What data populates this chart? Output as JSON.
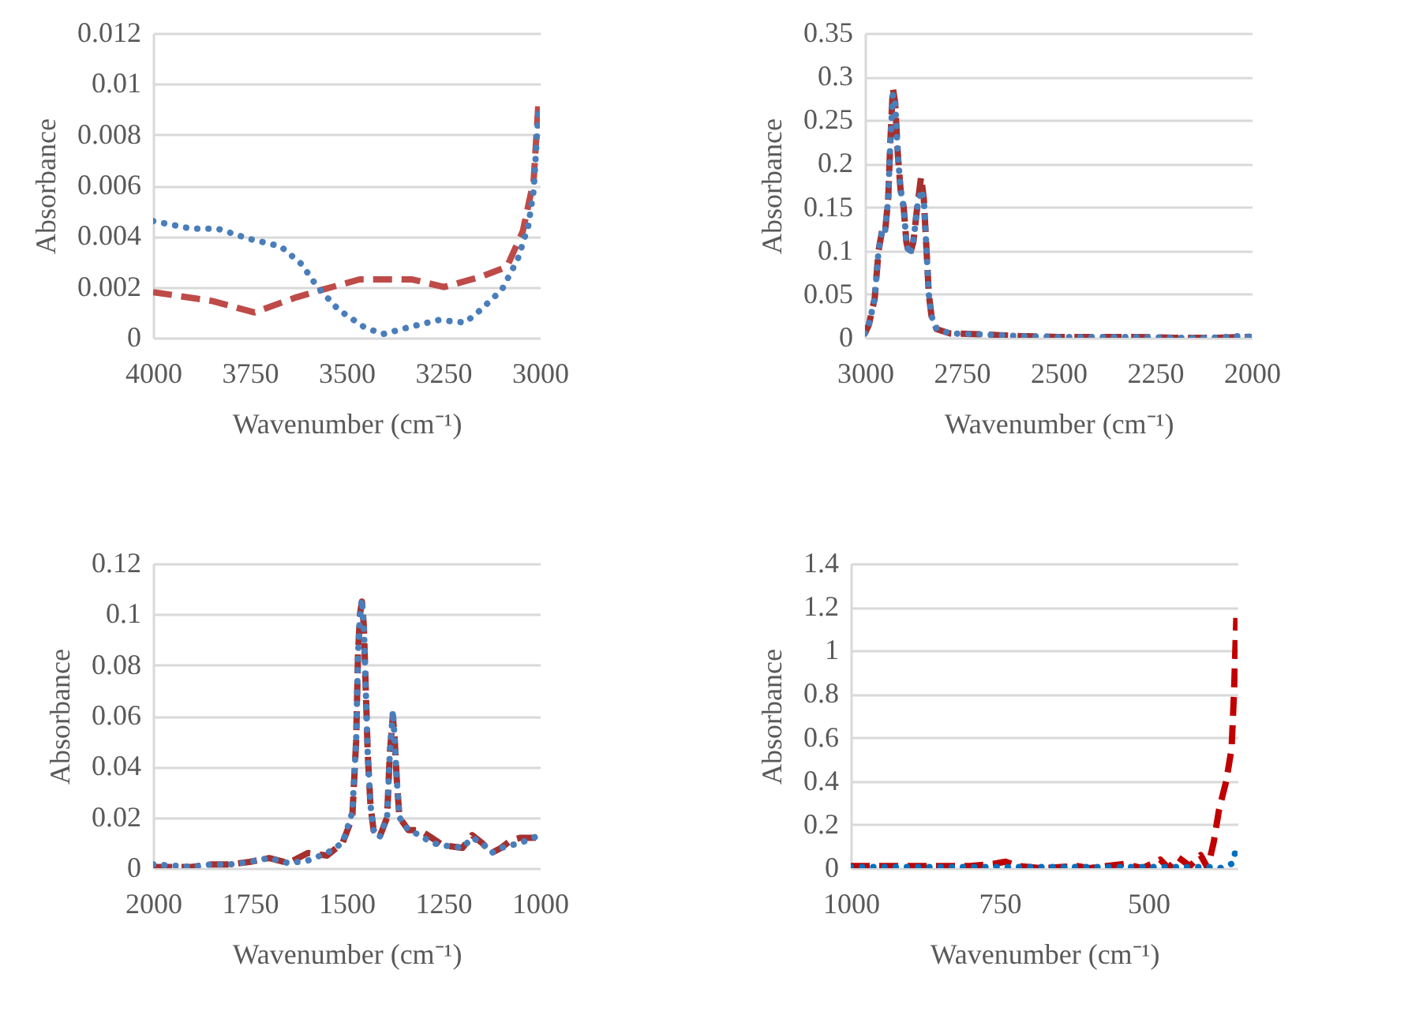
{
  "chart_data": [
    {
      "type": "line",
      "xlabel": "Wavenumber (cm⁻¹)",
      "ylabel": "Absorbance",
      "xlim": [
        4000,
        3000
      ],
      "xticks": [
        4000,
        3750,
        3500,
        3250,
        3000
      ],
      "ylim": [
        0,
        0.012
      ],
      "yticks": [
        0,
        0.002,
        0.004,
        0.006,
        0.008,
        0.01,
        0.012
      ],
      "grid": "y",
      "marker": "none",
      "series": [
        {
          "color": "#be4b48",
          "line_style": "dashed",
          "x": [
            4000,
            3847,
            3738,
            3629,
            3561,
            3466,
            3330,
            3248,
            3153,
            3085,
            3044,
            3016,
            3003
          ],
          "values": [
            0.0018,
            0.00145,
            0.001,
            0.0016,
            0.0019,
            0.0023,
            0.0023,
            0.002,
            0.0024,
            0.0028,
            0.0042,
            0.0062,
            0.0094
          ]
        },
        {
          "color": "#4a7ebb",
          "line_style": "dotted",
          "x": [
            4000,
            3902,
            3834,
            3752,
            3670,
            3616,
            3575,
            3520,
            3452,
            3405,
            3330,
            3262,
            3193,
            3153,
            3098,
            3057,
            3030,
            3016,
            3003
          ],
          "values": [
            0.0046,
            0.0043,
            0.0043,
            0.0039,
            0.0036,
            0.0029,
            0.002,
            0.0011,
            0.0004,
            0.00015,
            0.00045,
            0.0007,
            0.0006,
            0.0011,
            0.0019,
            0.0031,
            0.0044,
            0.0058,
            0.0091
          ]
        }
      ]
    },
    {
      "type": "line",
      "xlabel": "Wavenumber (cm⁻¹)",
      "ylabel": "Absorbance",
      "xlim": [
        3000,
        2000
      ],
      "xticks": [
        3000,
        2750,
        2500,
        2250,
        2000
      ],
      "ylim": [
        0,
        0.35
      ],
      "yticks": [
        0,
        0.05,
        0.1,
        0.15,
        0.2,
        0.25,
        0.3,
        0.35
      ],
      "grid": "y",
      "marker": "none",
      "series": [
        {
          "color": "#a5302e",
          "line_style": "dashed",
          "x": [
            3000,
            2990,
            2975,
            2965,
            2955,
            2948,
            2940,
            2935,
            2928,
            2922,
            2915,
            2908,
            2900,
            2893,
            2885,
            2875,
            2865,
            2855,
            2848,
            2842,
            2835,
            2828,
            2815,
            2780,
            2700,
            2600,
            2500,
            2400,
            2300,
            2200,
            2100,
            2000
          ],
          "values": [
            0.005,
            0.015,
            0.045,
            0.1,
            0.125,
            0.122,
            0.16,
            0.22,
            0.287,
            0.27,
            0.21,
            0.17,
            0.15,
            0.11,
            0.094,
            0.11,
            0.15,
            0.185,
            0.16,
            0.11,
            0.05,
            0.025,
            0.01,
            0.005,
            0.004,
            0.002,
            0.001,
            0.001,
            0.001,
            0.0,
            0.0,
            0.001
          ]
        },
        {
          "color": "#4a7ebb",
          "line_style": "dotted",
          "x": [
            3000,
            2990,
            2975,
            2965,
            2955,
            2948,
            2940,
            2935,
            2928,
            2922,
            2915,
            2908,
            2900,
            2893,
            2885,
            2875,
            2865,
            2855,
            2848,
            2842,
            2835,
            2828,
            2815,
            2780,
            2700,
            2600,
            2500,
            2400,
            2300,
            2200,
            2100,
            2030,
            2000
          ],
          "values": [
            0.005,
            0.015,
            0.045,
            0.1,
            0.125,
            0.122,
            0.16,
            0.22,
            0.28,
            0.27,
            0.21,
            0.17,
            0.15,
            0.11,
            0.095,
            0.11,
            0.15,
            0.17,
            0.16,
            0.11,
            0.05,
            0.025,
            0.01,
            0.005,
            0.004,
            0.002,
            0.001,
            0.001,
            0.001,
            0.0,
            0.0,
            0.002,
            0.001
          ]
        }
      ]
    },
    {
      "type": "line",
      "xlabel": "Wavenumber (cm⁻¹)",
      "ylabel": "Absorbance",
      "xlim": [
        2000,
        1000
      ],
      "xticks": [
        2000,
        1750,
        1500,
        1250,
        1000
      ],
      "ylim": [
        0,
        0.12
      ],
      "yticks": [
        0,
        0.02,
        0.04,
        0.06,
        0.08,
        0.1,
        0.12
      ],
      "grid": "y",
      "marker": "none",
      "series": [
        {
          "color": "#a5302e",
          "line_style": "dashed",
          "x": [
            2000,
            1950,
            1900,
            1850,
            1800,
            1750,
            1700,
            1650,
            1600,
            1550,
            1510,
            1485,
            1475,
            1470,
            1465,
            1460,
            1455,
            1450,
            1445,
            1438,
            1430,
            1415,
            1395,
            1388,
            1380,
            1375,
            1370,
            1363,
            1340,
            1310,
            1280,
            1250,
            1200,
            1175,
            1150,
            1125,
            1100,
            1075,
            1050,
            1000
          ],
          "values": [
            0.0005,
            0.0005,
            0.0005,
            0.0015,
            0.0015,
            0.0025,
            0.004,
            0.002,
            0.006,
            0.005,
            0.01,
            0.02,
            0.05,
            0.085,
            0.1,
            0.105,
            0.095,
            0.07,
            0.045,
            0.025,
            0.015,
            0.012,
            0.02,
            0.045,
            0.06,
            0.05,
            0.035,
            0.02,
            0.015,
            0.015,
            0.012,
            0.009,
            0.008,
            0.013,
            0.01,
            0.006,
            0.008,
            0.011,
            0.012,
            0.012
          ]
        },
        {
          "color": "#4a7ebb",
          "line_style": "dotted",
          "x": [
            2000,
            1950,
            1900,
            1850,
            1800,
            1750,
            1700,
            1650,
            1600,
            1550,
            1510,
            1485,
            1475,
            1470,
            1465,
            1460,
            1455,
            1450,
            1445,
            1438,
            1430,
            1415,
            1395,
            1388,
            1380,
            1375,
            1370,
            1363,
            1340,
            1310,
            1280,
            1250,
            1200,
            1175,
            1150,
            1125,
            1100,
            1075,
            1050,
            1000
          ],
          "values": [
            0.0015,
            0.001,
            0.0005,
            0.0015,
            0.0015,
            0.0025,
            0.004,
            0.002,
            0.003,
            0.006,
            0.01,
            0.022,
            0.05,
            0.085,
            0.1,
            0.106,
            0.095,
            0.07,
            0.045,
            0.025,
            0.015,
            0.012,
            0.02,
            0.045,
            0.062,
            0.05,
            0.035,
            0.02,
            0.015,
            0.013,
            0.01,
            0.009,
            0.008,
            0.012,
            0.01,
            0.006,
            0.008,
            0.009,
            0.01,
            0.013
          ]
        }
      ]
    },
    {
      "type": "line",
      "xlabel": "Wavenumber (cm⁻¹)",
      "ylabel": "Absorbance",
      "xlim": [
        1000,
        350
      ],
      "xticks": [
        1000,
        750,
        500
      ],
      "ylim": [
        0,
        1.4
      ],
      "yticks": [
        0,
        0.2,
        0.4,
        0.6,
        0.8,
        1,
        1.2,
        1.4
      ],
      "grid": "y",
      "marker": "none",
      "series": [
        {
          "color": "#c00000",
          "line_style": "dashed",
          "x": [
            1000,
            950,
            900,
            850,
            800,
            760,
            740,
            720,
            680,
            620,
            600,
            540,
            510,
            480,
            466,
            450,
            430,
            412,
            400,
            390,
            381,
            369,
            360,
            356,
            352
          ],
          "values": [
            0.01,
            0.01,
            0.01,
            0.01,
            0.01,
            0.02,
            0.03,
            0.01,
            0.0,
            0.01,
            0.0,
            0.02,
            0.0,
            0.04,
            0.0,
            0.05,
            0.01,
            0.06,
            0.0,
            0.12,
            0.27,
            0.4,
            0.55,
            0.8,
            1.15
          ]
        },
        {
          "color": "#0070c0",
          "line_style": "dotted",
          "x": [
            1000,
            900,
            800,
            700,
            600,
            500,
            400,
            380,
            360,
            355,
            352
          ],
          "values": [
            0.005,
            0.005,
            0.005,
            0.005,
            0.005,
            0.005,
            0.005,
            0.0,
            0.02,
            0.06,
            0.1
          ]
        }
      ]
    }
  ]
}
